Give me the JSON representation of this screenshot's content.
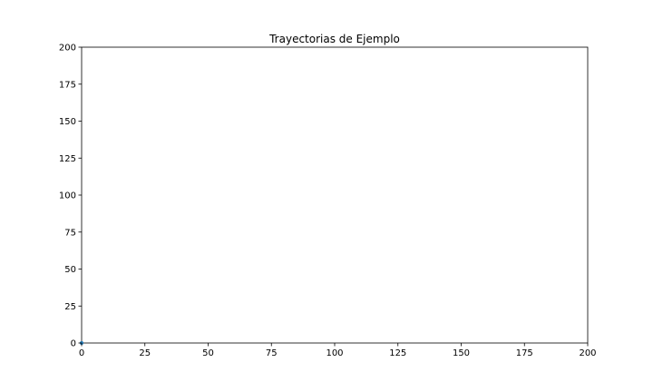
{
  "chart_data": {
    "type": "line",
    "title": "Trayectorias de Ejemplo",
    "xlabel": "",
    "ylabel": "",
    "xlim": [
      0,
      200
    ],
    "ylim": [
      0,
      200
    ],
    "x_ticks": [
      0,
      25,
      50,
      75,
      100,
      125,
      150,
      175,
      200
    ],
    "y_ticks": [
      0,
      25,
      50,
      75,
      100,
      125,
      150,
      175,
      200
    ],
    "x_tick_labels": [
      "0",
      "25",
      "50",
      "75",
      "100",
      "125",
      "150",
      "175",
      "200"
    ],
    "y_tick_labels": [
      "0",
      "25",
      "50",
      "75",
      "100",
      "125",
      "150",
      "175",
      "200"
    ],
    "grid": false,
    "legend": "none",
    "series": [
      {
        "x": [
          0
        ],
        "y": [
          0
        ],
        "color": "#1f77b4"
      }
    ]
  }
}
